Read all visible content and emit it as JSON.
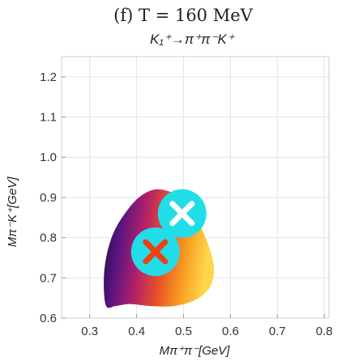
{
  "chart_data": {
    "type": "heatmap",
    "title": "(f) T = 160 MeV",
    "subtitle": "K₁⁺→π⁺π⁻K⁺",
    "xlabel": "Mπ⁺π⁻[GeV]",
    "ylabel": "Mπ⁻K⁺[GeV]",
    "xlim": [
      0.24,
      0.81
    ],
    "ylim": [
      0.6,
      1.25
    ],
    "x_ticks": [
      0.3,
      0.4,
      0.5,
      0.6,
      0.7,
      0.8
    ],
    "x_tick_labels": [
      "0.3",
      "0.4",
      "0.5",
      "0.6",
      "0.7",
      "0.8"
    ],
    "y_ticks": [
      0.6,
      0.7,
      0.8,
      0.9,
      1.0,
      1.1,
      1.2
    ],
    "y_tick_labels": [
      "0.6",
      "0.7",
      "0.8",
      "0.9",
      "1.0",
      "1.1",
      "1.2"
    ],
    "grid": true,
    "region": {
      "description": "allowed Dalitz region, color gradient dark purple (left) to orange/yellow (right)",
      "colors": [
        "#1a0a3a",
        "#5a1580",
        "#b3206a",
        "#e8502a",
        "#f79a20",
        "#ffd54a"
      ],
      "boundary": [
        [
          0.335,
          0.63
        ],
        [
          0.33,
          0.69
        ],
        [
          0.335,
          0.75
        ],
        [
          0.35,
          0.81
        ],
        [
          0.375,
          0.86
        ],
        [
          0.405,
          0.9
        ],
        [
          0.44,
          0.92
        ],
        [
          0.48,
          0.91
        ],
        [
          0.51,
          0.88
        ],
        [
          0.535,
          0.83
        ],
        [
          0.555,
          0.775
        ],
        [
          0.565,
          0.72
        ],
        [
          0.555,
          0.675
        ],
        [
          0.525,
          0.645
        ],
        [
          0.48,
          0.63
        ],
        [
          0.43,
          0.63
        ],
        [
          0.385,
          0.635
        ],
        [
          0.355,
          0.63
        ]
      ]
    },
    "markers": [
      {
        "x": 0.497,
        "y": 0.86,
        "fill": "#22dde8",
        "cross": "#ffffff"
      },
      {
        "x": 0.44,
        "y": 0.765,
        "fill": "#22dde8",
        "cross": "#ee4010"
      }
    ]
  }
}
